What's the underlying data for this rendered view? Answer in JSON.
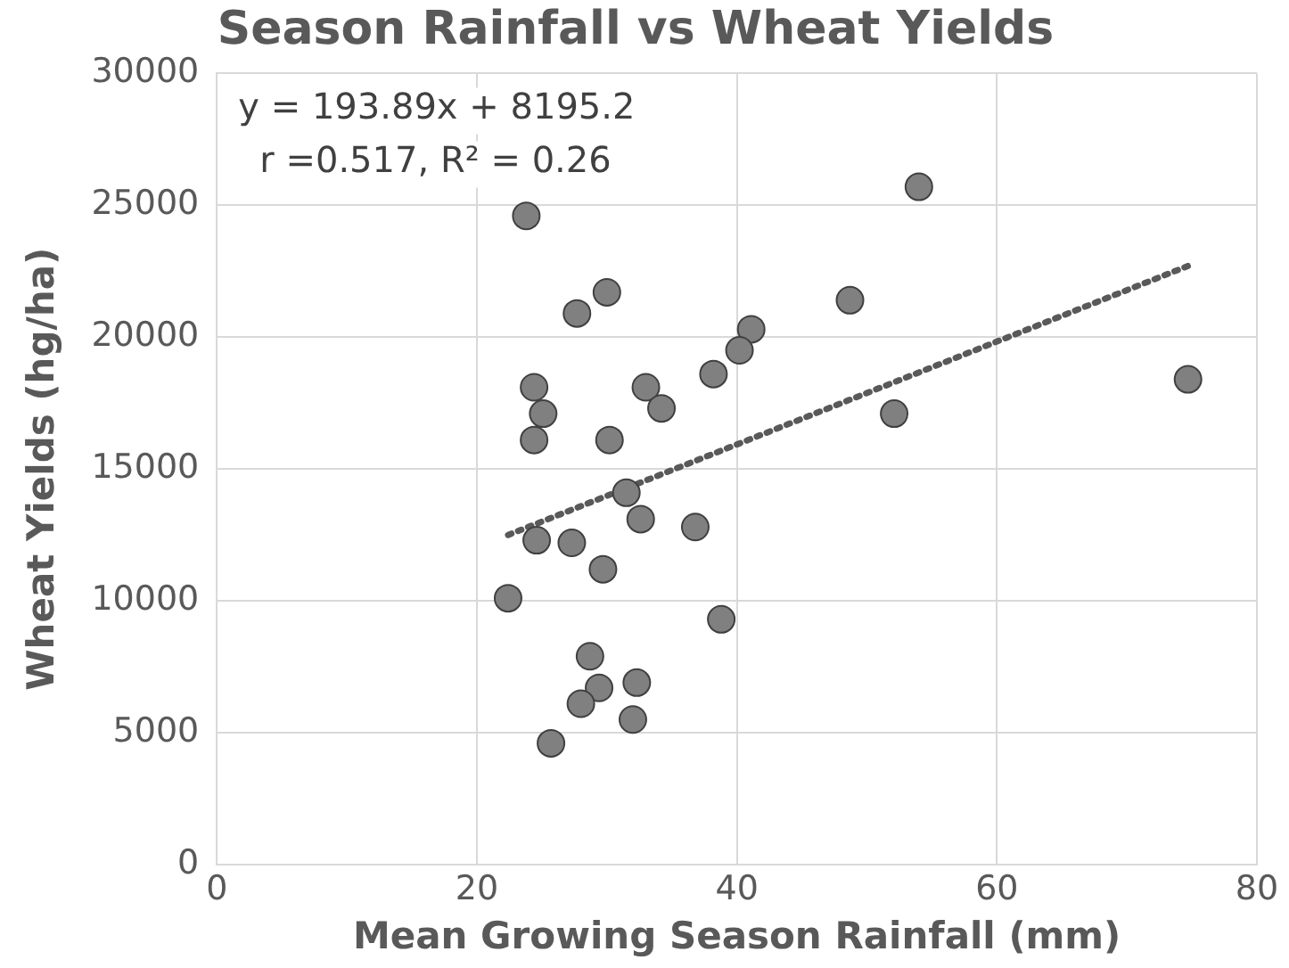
{
  "chart_data": {
    "type": "scatter",
    "title": "Season Rainfall vs Wheat Yields",
    "xlabel": "Mean Growing Season Rainfall (mm)",
    "ylabel": "Wheat Yields (hg/ha)",
    "annotations": [
      "y = 193.89x + 8195.2",
      "r =0.517, R² = 0.26"
    ],
    "series": [
      {
        "color": "#808080",
        "marker": "circle",
        "x": [
          23.8,
          54.0,
          27.7,
          30.0,
          48.7,
          41.1,
          40.2,
          38.2,
          74.7,
          24.4,
          33.0,
          25.1,
          34.2,
          52.1,
          24.4,
          30.2,
          31.5,
          32.6,
          36.8,
          24.6,
          27.3,
          29.7,
          22.4,
          38.8,
          28.7,
          29.4,
          32.3,
          28.0,
          32.0,
          25.7
        ],
        "values": [
          24600,
          25700,
          20900,
          21700,
          21400,
          20300,
          19500,
          18600,
          18400,
          18100,
          18100,
          17100,
          17300,
          17100,
          16100,
          16100,
          14100,
          13100,
          12800,
          12300,
          12200,
          11200,
          10100,
          9300,
          7900,
          6700,
          6900,
          6100,
          5500,
          4600
        ]
      },
      {
        "type": "line",
        "color": "#595959",
        "marker": "none",
        "line_style": "dotted",
        "x": [
          22.4,
          74.7
        ],
        "values": [
          12500,
          22700
        ]
      }
    ],
    "xlim": [
      0,
      80
    ],
    "xticks": [
      0,
      20,
      40,
      60,
      80
    ],
    "ylim": [
      0,
      30000
    ],
    "yticks": [
      0,
      5000,
      10000,
      15000,
      20000,
      25000,
      30000
    ],
    "grid": true,
    "legend": false
  }
}
